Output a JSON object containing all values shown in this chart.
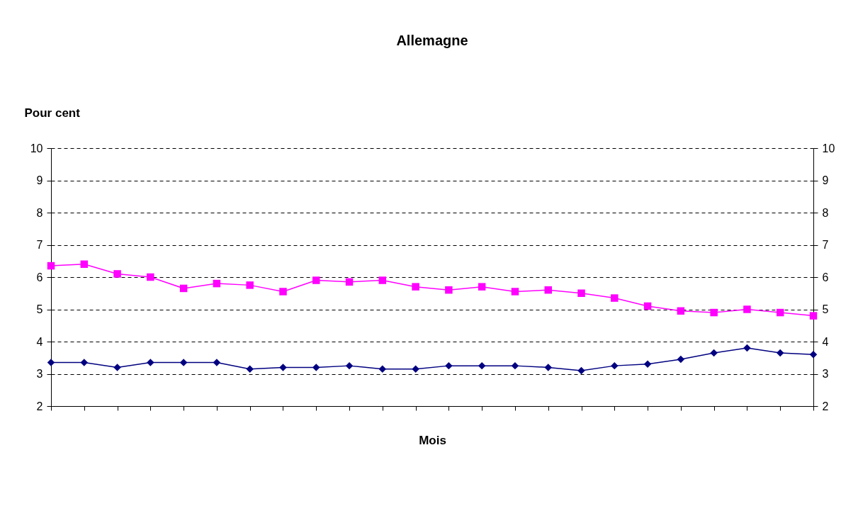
{
  "chart_data": {
    "type": "line",
    "title": "Allemagne",
    "ylabel": "Pour cent",
    "xlabel": "Mois",
    "categories": [
      null,
      null,
      null,
      null,
      null,
      null,
      null,
      null,
      null,
      null,
      null,
      null,
      null,
      null,
      null,
      null,
      null,
      null,
      null,
      null,
      null,
      null,
      null,
      null
    ],
    "series": [
      {
        "color": "#ff00ff",
        "marker": "square",
        "values": [
          6.35,
          6.4,
          6.1,
          6.0,
          5.65,
          5.8,
          5.75,
          5.55,
          5.9,
          5.85,
          5.9,
          5.7,
          5.6,
          5.7,
          5.55,
          5.6,
          5.5,
          5.35,
          5.1,
          4.95,
          4.9,
          5.0,
          4.9,
          4.8
        ]
      },
      {
        "color": "#000080",
        "marker": "diamond",
        "values": [
          3.35,
          3.35,
          3.2,
          3.35,
          3.35,
          3.35,
          3.15,
          3.2,
          3.2,
          3.25,
          3.15,
          3.15,
          3.25,
          3.25,
          3.25,
          3.2,
          3.1,
          3.25,
          3.3,
          3.45,
          3.65,
          3.8,
          3.65,
          3.6
        ]
      }
    ],
    "ylim": [
      2,
      10
    ],
    "yticks": [
      2,
      3,
      4,
      5,
      6,
      7,
      8,
      9,
      10
    ],
    "y2lim": [
      2,
      10
    ],
    "y2ticks": [
      2,
      3,
      4,
      5,
      6,
      7,
      8,
      9,
      10
    ],
    "grid": "y",
    "line_style": "solid",
    "tick_labels": "y"
  }
}
